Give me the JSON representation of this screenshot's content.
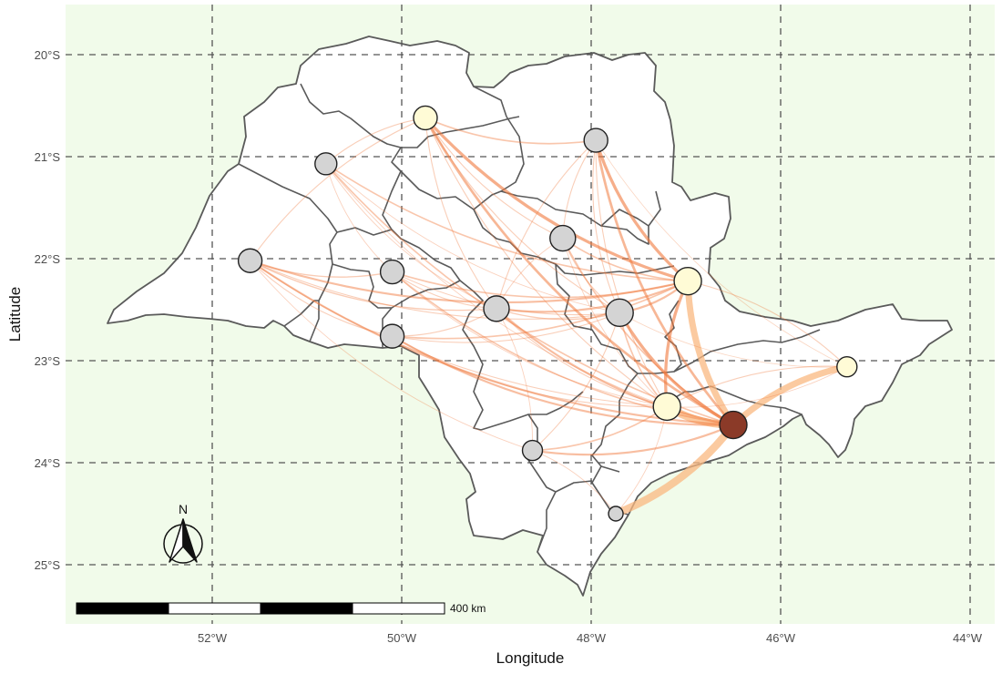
{
  "map": {
    "y_axis_label": "Latitude",
    "x_axis_label": "Longitude",
    "lat_ticks": [
      "20°S",
      "21°S",
      "22°S",
      "23°S",
      "24°S",
      "25°S"
    ],
    "lon_ticks": [
      "52°W",
      "50°W",
      "48°W",
      "46°W",
      "44°W"
    ],
    "lat_values": [
      -20,
      -21,
      -22,
      -23,
      -24,
      -25
    ],
    "lon_values": [
      -52,
      -50,
      -48,
      -46,
      -44
    ],
    "compass_label": "N",
    "scale_label": "400 km",
    "colors": {
      "background": "#f1fbea",
      "flow": "#f07b3f",
      "flow_strong": "#f9b880",
      "node_low": "#d4d4d4",
      "node_mid": "#fffbd6",
      "node_high": "#8b3a28"
    }
  },
  "chart_data": {
    "type": "map",
    "title": "",
    "xlabel": "Longitude",
    "ylabel": "Latitude",
    "xlim": [
      -53.7,
      -43.8
    ],
    "ylim": [
      -25.6,
      -19.5
    ],
    "nodes": [
      {
        "name": "n1",
        "lon": -49.75,
        "lat": -20.62,
        "size": 13,
        "level": "mid"
      },
      {
        "name": "n2",
        "lon": -47.95,
        "lat": -20.84,
        "size": 13,
        "level": "low"
      },
      {
        "name": "n3",
        "lon": -50.8,
        "lat": -21.07,
        "size": 12,
        "level": "low"
      },
      {
        "name": "n4",
        "lon": -48.3,
        "lat": -21.8,
        "size": 14,
        "level": "low"
      },
      {
        "name": "n5",
        "lon": -51.6,
        "lat": -22.02,
        "size": 13,
        "level": "low"
      },
      {
        "name": "n6",
        "lon": -50.1,
        "lat": -22.13,
        "size": 13,
        "level": "low"
      },
      {
        "name": "n7",
        "lon": -46.98,
        "lat": -22.22,
        "size": 15,
        "level": "mid"
      },
      {
        "name": "n8",
        "lon": -49.0,
        "lat": -22.49,
        "size": 14,
        "level": "low"
      },
      {
        "name": "n9",
        "lon": -47.7,
        "lat": -22.53,
        "size": 15,
        "level": "low"
      },
      {
        "name": "n10",
        "lon": -50.1,
        "lat": -22.76,
        "size": 13,
        "level": "low"
      },
      {
        "name": "n11",
        "lon": -45.3,
        "lat": -23.06,
        "size": 11,
        "level": "mid"
      },
      {
        "name": "n12",
        "lon": -47.2,
        "lat": -23.45,
        "size": 15,
        "level": "mid"
      },
      {
        "name": "n13",
        "lon": -46.5,
        "lat": -23.63,
        "size": 15,
        "level": "high"
      },
      {
        "name": "n14",
        "lon": -48.62,
        "lat": -23.88,
        "size": 11,
        "level": "low"
      },
      {
        "name": "n15",
        "lon": -47.74,
        "lat": -24.5,
        "size": 8,
        "level": "low"
      }
    ],
    "flows": [
      {
        "from": "n12",
        "to": "n13",
        "weight": 6
      },
      {
        "from": "n7",
        "to": "n13",
        "weight": 5
      },
      {
        "from": "n15",
        "to": "n13",
        "weight": 6
      },
      {
        "from": "n11",
        "to": "n13",
        "weight": 5
      },
      {
        "from": "n9",
        "to": "n13",
        "weight": 3
      },
      {
        "from": "n7",
        "to": "n12",
        "weight": 3
      },
      {
        "from": "n1",
        "to": "n7",
        "weight": 3
      },
      {
        "from": "n2",
        "to": "n7",
        "weight": 3
      },
      {
        "from": "n1",
        "to": "n13",
        "weight": 2.5
      },
      {
        "from": "n2",
        "to": "n13",
        "weight": 2.5
      },
      {
        "from": "n5",
        "to": "n7",
        "weight": 2
      },
      {
        "from": "n5",
        "to": "n13",
        "weight": 2
      },
      {
        "from": "n8",
        "to": "n13",
        "weight": 2
      },
      {
        "from": "n8",
        "to": "n7",
        "weight": 2
      },
      {
        "from": "n14",
        "to": "n13",
        "weight": 2
      },
      {
        "from": "n14",
        "to": "n12",
        "weight": 1.5
      },
      {
        "from": "n10",
        "to": "n13",
        "weight": 2
      },
      {
        "from": "n10",
        "to": "n7",
        "weight": 1.5
      },
      {
        "from": "n6",
        "to": "n7",
        "weight": 1.5
      },
      {
        "from": "n6",
        "to": "n13",
        "weight": 1.5
      },
      {
        "from": "n3",
        "to": "n7",
        "weight": 1.5
      },
      {
        "from": "n3",
        "to": "n13",
        "weight": 1.5
      },
      {
        "from": "n4",
        "to": "n13",
        "weight": 1.5
      },
      {
        "from": "n4",
        "to": "n7",
        "weight": 1.5
      },
      {
        "from": "n9",
        "to": "n7",
        "weight": 2
      },
      {
        "from": "n9",
        "to": "n12",
        "weight": 1.5
      },
      {
        "from": "n11",
        "to": "n7",
        "weight": 1
      },
      {
        "from": "n11",
        "to": "n12",
        "weight": 1
      },
      {
        "from": "n1",
        "to": "n2",
        "weight": 1.5
      },
      {
        "from": "n1",
        "to": "n5",
        "weight": 1
      },
      {
        "from": "n1",
        "to": "n3",
        "weight": 1
      },
      {
        "from": "n1",
        "to": "n4",
        "weight": 1
      },
      {
        "from": "n1",
        "to": "n8",
        "weight": 1
      },
      {
        "from": "n1",
        "to": "n9",
        "weight": 1
      },
      {
        "from": "n2",
        "to": "n4",
        "weight": 1
      },
      {
        "from": "n2",
        "to": "n9",
        "weight": 1
      },
      {
        "from": "n2",
        "to": "n8",
        "weight": 1
      },
      {
        "from": "n5",
        "to": "n6",
        "weight": 1.2
      },
      {
        "from": "n5",
        "to": "n8",
        "weight": 1.2
      },
      {
        "from": "n5",
        "to": "n10",
        "weight": 1
      },
      {
        "from": "n5",
        "to": "n9",
        "weight": 1
      },
      {
        "from": "n6",
        "to": "n8",
        "weight": 1
      },
      {
        "from": "n6",
        "to": "n9",
        "weight": 1
      },
      {
        "from": "n8",
        "to": "n9",
        "weight": 1.2
      },
      {
        "from": "n8",
        "to": "n12",
        "weight": 1
      },
      {
        "from": "n10",
        "to": "n9",
        "weight": 1
      },
      {
        "from": "n10",
        "to": "n8",
        "weight": 1
      },
      {
        "from": "n10",
        "to": "n12",
        "weight": 1
      },
      {
        "from": "n14",
        "to": "n9",
        "weight": 1
      },
      {
        "from": "n14",
        "to": "n8",
        "weight": 0.8
      },
      {
        "from": "n15",
        "to": "n14",
        "weight": 0.8
      },
      {
        "from": "n15",
        "to": "n12",
        "weight": 0.8
      },
      {
        "from": "n3",
        "to": "n8",
        "weight": 0.8
      },
      {
        "from": "n3",
        "to": "n9",
        "weight": 0.8
      },
      {
        "from": "n3",
        "to": "n6",
        "weight": 0.8
      },
      {
        "from": "n4",
        "to": "n9",
        "weight": 1
      },
      {
        "from": "n4",
        "to": "n8",
        "weight": 0.8
      },
      {
        "from": "n4",
        "to": "n12",
        "weight": 0.8
      },
      {
        "from": "n2",
        "to": "n12",
        "weight": 1
      },
      {
        "from": "n1",
        "to": "n12",
        "weight": 1
      },
      {
        "from": "n5",
        "to": "n12",
        "weight": 1
      },
      {
        "from": "n5",
        "to": "n14",
        "weight": 0.8
      },
      {
        "from": "n3",
        "to": "n12",
        "weight": 0.8
      },
      {
        "from": "n6",
        "to": "n12",
        "weight": 0.8
      },
      {
        "from": "n9",
        "to": "n11",
        "weight": 0.6
      },
      {
        "from": "n2",
        "to": "n11",
        "weight": 0.6
      },
      {
        "from": "n12",
        "to": "n11",
        "weight": 0.8
      }
    ]
  }
}
